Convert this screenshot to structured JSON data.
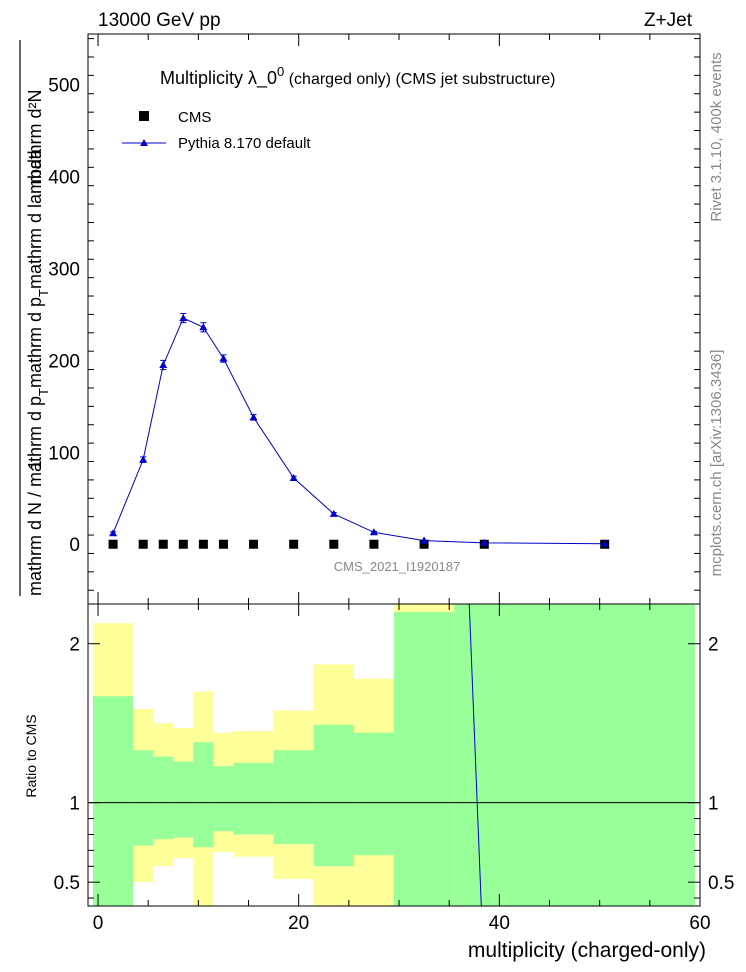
{
  "header": {
    "left": "13000 GeV pp",
    "right": "Z+Jet"
  },
  "side_labels": {
    "rivet": "Rivet 3.1.10,  400k events",
    "source": "mcplots.cern.ch [arXiv:1306.3436]"
  },
  "watermark": "CMS_2021_I1920187",
  "colors": {
    "mc_line": "#0000cc",
    "data_marker": "#000000",
    "band_inner": "#99ff99",
    "band_outer": "#ffff99"
  },
  "chart_data": [
    {
      "type": "scatter",
      "title": "Multiplicity  λ_0",
      "title_sup": "0",
      "title_rest": " (charged only) (CMS jet substructure)",
      "ylabel_numerator": "mathrm d²N",
      "ylabel_denominator_top": "mathrm d N / mathrm d p",
      "ylabel_sub_T": "T",
      "ylabel_mid": "mathrm d p",
      "ylabel_tail": "mathrm d lambda",
      "ylabel_one": "1",
      "xlim": [
        -1,
        60
      ],
      "ylim": [
        -65,
        555
      ],
      "yticks": [
        0,
        100,
        200,
        300,
        400,
        500
      ],
      "legend": [
        {
          "label": "CMS",
          "marker": "square"
        },
        {
          "label": "Pythia 8.170 default",
          "marker": "triangle-line"
        }
      ],
      "legend_position": "top-left",
      "series": [
        {
          "name": "CMS",
          "x": [
            1.5,
            4.5,
            6.5,
            8.5,
            10.5,
            12.5,
            15.5,
            19.5,
            23.5,
            27.5,
            32.5,
            38.5,
            50.5
          ],
          "y": [
            0,
            0,
            0,
            0,
            0,
            0,
            0,
            0,
            0,
            0,
            0,
            0,
            0
          ]
        },
        {
          "name": "Pythia 8.170 default",
          "x": [
            1.5,
            4.5,
            6.5,
            8.5,
            10.5,
            12.5,
            15.5,
            19.5,
            23.5,
            27.5,
            32.5,
            38.5,
            50.5
          ],
          "y": [
            12,
            92,
            195,
            246,
            236,
            202,
            138,
            72,
            33,
            13,
            4,
            1.5,
            0.5
          ],
          "yerr": [
            1.5,
            3,
            5,
            5,
            5,
            4,
            3,
            2,
            1.5,
            1,
            0.5,
            0.3,
            0.2
          ]
        }
      ]
    },
    {
      "type": "area",
      "ylabel": "Ratio to CMS",
      "xlabel": "multiplicity (charged-only)",
      "xlim": [
        -1,
        60
      ],
      "ylim": [
        0.35,
        2.25
      ],
      "xticks": [
        0,
        20,
        40,
        60
      ],
      "yticks": [
        0.5,
        1,
        2
      ],
      "reference": 1,
      "bins": [
        {
          "lo": -0.5,
          "hi": 3.5,
          "in_lo": 0.0,
          "in_hi": 1.67,
          "out_lo": 0.0,
          "out_hi": 2.13
        },
        {
          "lo": 3.5,
          "hi": 5.5,
          "in_lo": 0.73,
          "in_hi": 1.33,
          "out_lo": 0.5,
          "out_hi": 1.59
        },
        {
          "lo": 5.5,
          "hi": 7.5,
          "in_lo": 0.77,
          "in_hi": 1.29,
          "out_lo": 0.6,
          "out_hi": 1.5
        },
        {
          "lo": 7.5,
          "hi": 9.5,
          "in_lo": 0.78,
          "in_hi": 1.26,
          "out_lo": 0.65,
          "out_hi": 1.47
        },
        {
          "lo": 9.5,
          "hi": 11.5,
          "in_lo": 0.72,
          "in_hi": 1.38,
          "out_lo": 0.0,
          "out_hi": 1.7
        },
        {
          "lo": 11.5,
          "hi": 13.5,
          "in_lo": 0.82,
          "in_hi": 1.23,
          "out_lo": 0.69,
          "out_hi": 1.44
        },
        {
          "lo": 13.5,
          "hi": 17.5,
          "in_lo": 0.8,
          "in_hi": 1.25,
          "out_lo": 0.66,
          "out_hi": 1.45
        },
        {
          "lo": 17.5,
          "hi": 21.5,
          "in_lo": 0.74,
          "in_hi": 1.33,
          "out_lo": 0.52,
          "out_hi": 1.58
        },
        {
          "lo": 21.5,
          "hi": 25.5,
          "in_lo": 0.6,
          "in_hi": 1.49,
          "out_lo": 0.35,
          "out_hi": 1.87
        },
        {
          "lo": 25.5,
          "hi": 29.5,
          "in_lo": 0.67,
          "in_hi": 1.44,
          "out_lo": 0.35,
          "out_hi": 1.78
        },
        {
          "lo": 29.5,
          "hi": 35.5,
          "in_lo": 0.35,
          "in_hi": 2.2,
          "out_lo": 0.35,
          "out_hi": 2.25
        },
        {
          "lo": 35.5,
          "hi": 59.5,
          "in_lo": 0.35,
          "in_hi": 2.25,
          "out_lo": 0.35,
          "out_hi": 2.25
        }
      ],
      "mc_ratio_line": {
        "x": [
          37,
          38.2
        ],
        "y": [
          2.25,
          0.35
        ]
      }
    }
  ]
}
